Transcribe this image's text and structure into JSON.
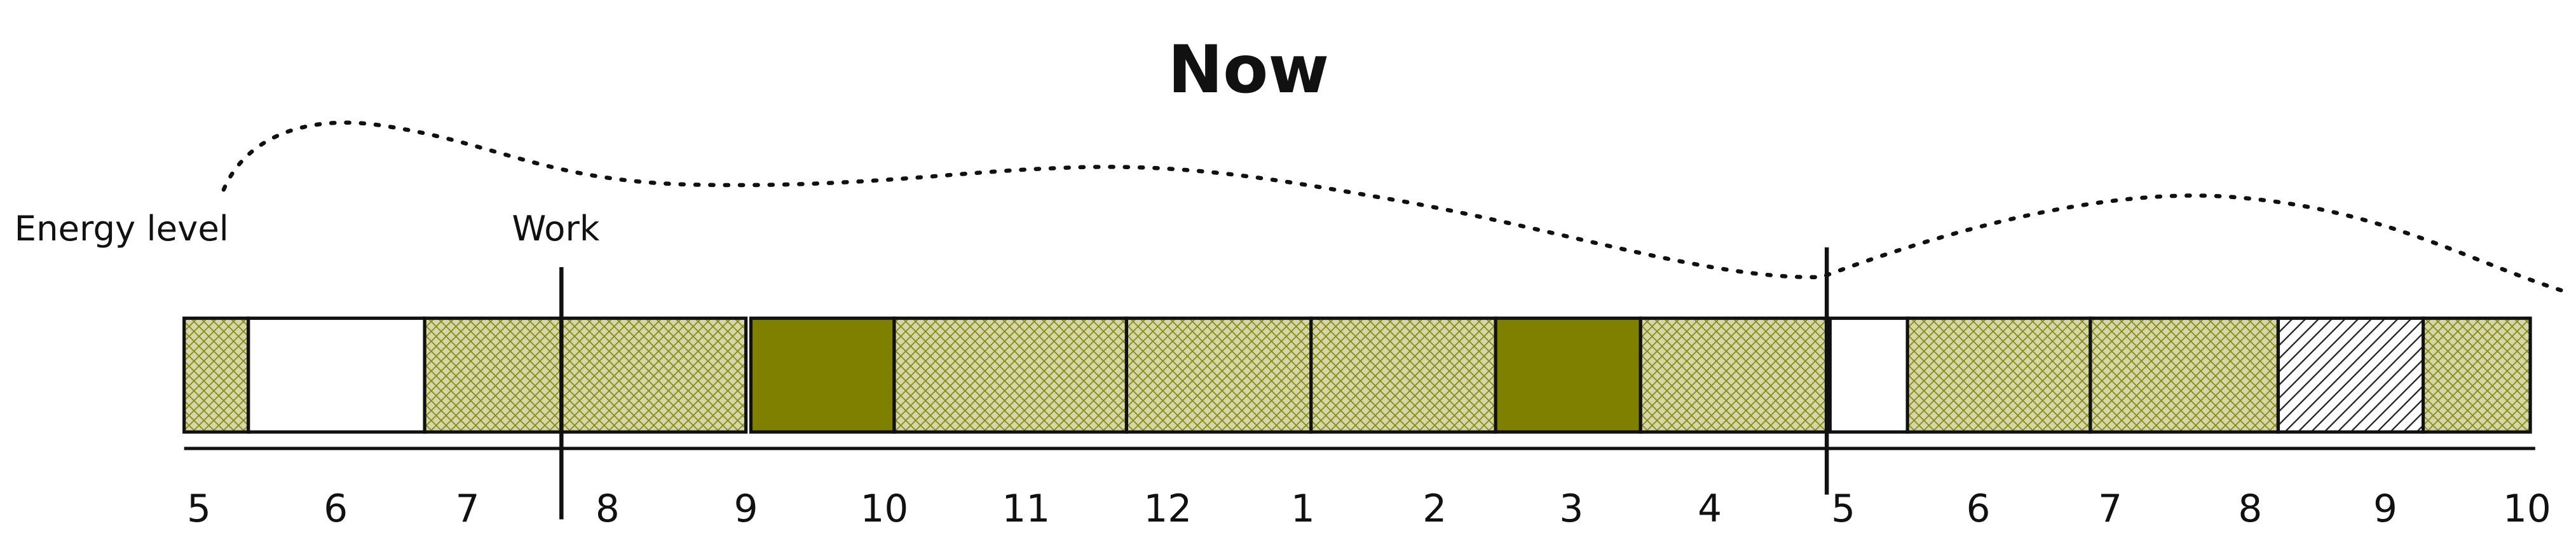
{
  "title": "Now",
  "labels": {
    "energy": "Energy level",
    "work": "Work"
  },
  "timeline": {
    "hours": [
      "5",
      "6",
      "7",
      "8",
      "9",
      "10",
      "11",
      "12",
      "1",
      "2",
      "3",
      "4",
      "5",
      "6",
      "7",
      "8",
      "9",
      "10"
    ]
  }
}
